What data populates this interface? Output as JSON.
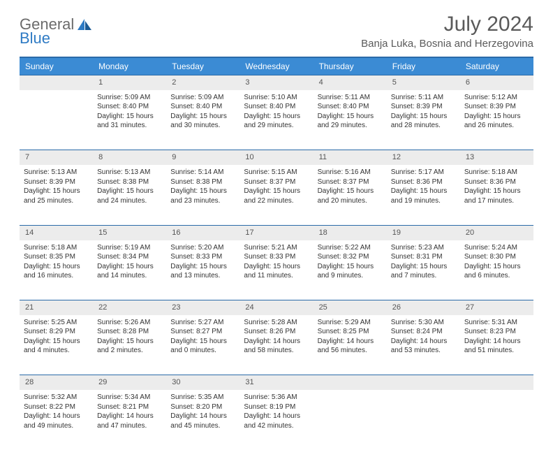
{
  "brand": {
    "part1": "General",
    "part2": "Blue"
  },
  "title": "July 2024",
  "location": "Banja Luka, Bosnia and Herzegovina",
  "colors": {
    "header_bg": "#3b8bd4",
    "header_border": "#2a6aa8",
    "daynum_bg": "#ececec",
    "text": "#333333",
    "brand_gray": "#6b6b6b",
    "brand_blue": "#2f7bc4"
  },
  "weekdays": [
    "Sunday",
    "Monday",
    "Tuesday",
    "Wednesday",
    "Thursday",
    "Friday",
    "Saturday"
  ],
  "weeks": [
    {
      "nums": [
        "",
        "1",
        "2",
        "3",
        "4",
        "5",
        "6"
      ],
      "cells": [
        null,
        {
          "sunrise": "Sunrise: 5:09 AM",
          "sunset": "Sunset: 8:40 PM",
          "day1": "Daylight: 15 hours",
          "day2": "and 31 minutes."
        },
        {
          "sunrise": "Sunrise: 5:09 AM",
          "sunset": "Sunset: 8:40 PM",
          "day1": "Daylight: 15 hours",
          "day2": "and 30 minutes."
        },
        {
          "sunrise": "Sunrise: 5:10 AM",
          "sunset": "Sunset: 8:40 PM",
          "day1": "Daylight: 15 hours",
          "day2": "and 29 minutes."
        },
        {
          "sunrise": "Sunrise: 5:11 AM",
          "sunset": "Sunset: 8:40 PM",
          "day1": "Daylight: 15 hours",
          "day2": "and 29 minutes."
        },
        {
          "sunrise": "Sunrise: 5:11 AM",
          "sunset": "Sunset: 8:39 PM",
          "day1": "Daylight: 15 hours",
          "day2": "and 28 minutes."
        },
        {
          "sunrise": "Sunrise: 5:12 AM",
          "sunset": "Sunset: 8:39 PM",
          "day1": "Daylight: 15 hours",
          "day2": "and 26 minutes."
        }
      ]
    },
    {
      "nums": [
        "7",
        "8",
        "9",
        "10",
        "11",
        "12",
        "13"
      ],
      "cells": [
        {
          "sunrise": "Sunrise: 5:13 AM",
          "sunset": "Sunset: 8:39 PM",
          "day1": "Daylight: 15 hours",
          "day2": "and 25 minutes."
        },
        {
          "sunrise": "Sunrise: 5:13 AM",
          "sunset": "Sunset: 8:38 PM",
          "day1": "Daylight: 15 hours",
          "day2": "and 24 minutes."
        },
        {
          "sunrise": "Sunrise: 5:14 AM",
          "sunset": "Sunset: 8:38 PM",
          "day1": "Daylight: 15 hours",
          "day2": "and 23 minutes."
        },
        {
          "sunrise": "Sunrise: 5:15 AM",
          "sunset": "Sunset: 8:37 PM",
          "day1": "Daylight: 15 hours",
          "day2": "and 22 minutes."
        },
        {
          "sunrise": "Sunrise: 5:16 AM",
          "sunset": "Sunset: 8:37 PM",
          "day1": "Daylight: 15 hours",
          "day2": "and 20 minutes."
        },
        {
          "sunrise": "Sunrise: 5:17 AM",
          "sunset": "Sunset: 8:36 PM",
          "day1": "Daylight: 15 hours",
          "day2": "and 19 minutes."
        },
        {
          "sunrise": "Sunrise: 5:18 AM",
          "sunset": "Sunset: 8:36 PM",
          "day1": "Daylight: 15 hours",
          "day2": "and 17 minutes."
        }
      ]
    },
    {
      "nums": [
        "14",
        "15",
        "16",
        "17",
        "18",
        "19",
        "20"
      ],
      "cells": [
        {
          "sunrise": "Sunrise: 5:18 AM",
          "sunset": "Sunset: 8:35 PM",
          "day1": "Daylight: 15 hours",
          "day2": "and 16 minutes."
        },
        {
          "sunrise": "Sunrise: 5:19 AM",
          "sunset": "Sunset: 8:34 PM",
          "day1": "Daylight: 15 hours",
          "day2": "and 14 minutes."
        },
        {
          "sunrise": "Sunrise: 5:20 AM",
          "sunset": "Sunset: 8:33 PM",
          "day1": "Daylight: 15 hours",
          "day2": "and 13 minutes."
        },
        {
          "sunrise": "Sunrise: 5:21 AM",
          "sunset": "Sunset: 8:33 PM",
          "day1": "Daylight: 15 hours",
          "day2": "and 11 minutes."
        },
        {
          "sunrise": "Sunrise: 5:22 AM",
          "sunset": "Sunset: 8:32 PM",
          "day1": "Daylight: 15 hours",
          "day2": "and 9 minutes."
        },
        {
          "sunrise": "Sunrise: 5:23 AM",
          "sunset": "Sunset: 8:31 PM",
          "day1": "Daylight: 15 hours",
          "day2": "and 7 minutes."
        },
        {
          "sunrise": "Sunrise: 5:24 AM",
          "sunset": "Sunset: 8:30 PM",
          "day1": "Daylight: 15 hours",
          "day2": "and 6 minutes."
        }
      ]
    },
    {
      "nums": [
        "21",
        "22",
        "23",
        "24",
        "25",
        "26",
        "27"
      ],
      "cells": [
        {
          "sunrise": "Sunrise: 5:25 AM",
          "sunset": "Sunset: 8:29 PM",
          "day1": "Daylight: 15 hours",
          "day2": "and 4 minutes."
        },
        {
          "sunrise": "Sunrise: 5:26 AM",
          "sunset": "Sunset: 8:28 PM",
          "day1": "Daylight: 15 hours",
          "day2": "and 2 minutes."
        },
        {
          "sunrise": "Sunrise: 5:27 AM",
          "sunset": "Sunset: 8:27 PM",
          "day1": "Daylight: 15 hours",
          "day2": "and 0 minutes."
        },
        {
          "sunrise": "Sunrise: 5:28 AM",
          "sunset": "Sunset: 8:26 PM",
          "day1": "Daylight: 14 hours",
          "day2": "and 58 minutes."
        },
        {
          "sunrise": "Sunrise: 5:29 AM",
          "sunset": "Sunset: 8:25 PM",
          "day1": "Daylight: 14 hours",
          "day2": "and 56 minutes."
        },
        {
          "sunrise": "Sunrise: 5:30 AM",
          "sunset": "Sunset: 8:24 PM",
          "day1": "Daylight: 14 hours",
          "day2": "and 53 minutes."
        },
        {
          "sunrise": "Sunrise: 5:31 AM",
          "sunset": "Sunset: 8:23 PM",
          "day1": "Daylight: 14 hours",
          "day2": "and 51 minutes."
        }
      ]
    },
    {
      "nums": [
        "28",
        "29",
        "30",
        "31",
        "",
        "",
        ""
      ],
      "cells": [
        {
          "sunrise": "Sunrise: 5:32 AM",
          "sunset": "Sunset: 8:22 PM",
          "day1": "Daylight: 14 hours",
          "day2": "and 49 minutes."
        },
        {
          "sunrise": "Sunrise: 5:34 AM",
          "sunset": "Sunset: 8:21 PM",
          "day1": "Daylight: 14 hours",
          "day2": "and 47 minutes."
        },
        {
          "sunrise": "Sunrise: 5:35 AM",
          "sunset": "Sunset: 8:20 PM",
          "day1": "Daylight: 14 hours",
          "day2": "and 45 minutes."
        },
        {
          "sunrise": "Sunrise: 5:36 AM",
          "sunset": "Sunset: 8:19 PM",
          "day1": "Daylight: 14 hours",
          "day2": "and 42 minutes."
        },
        null,
        null,
        null
      ]
    }
  ]
}
